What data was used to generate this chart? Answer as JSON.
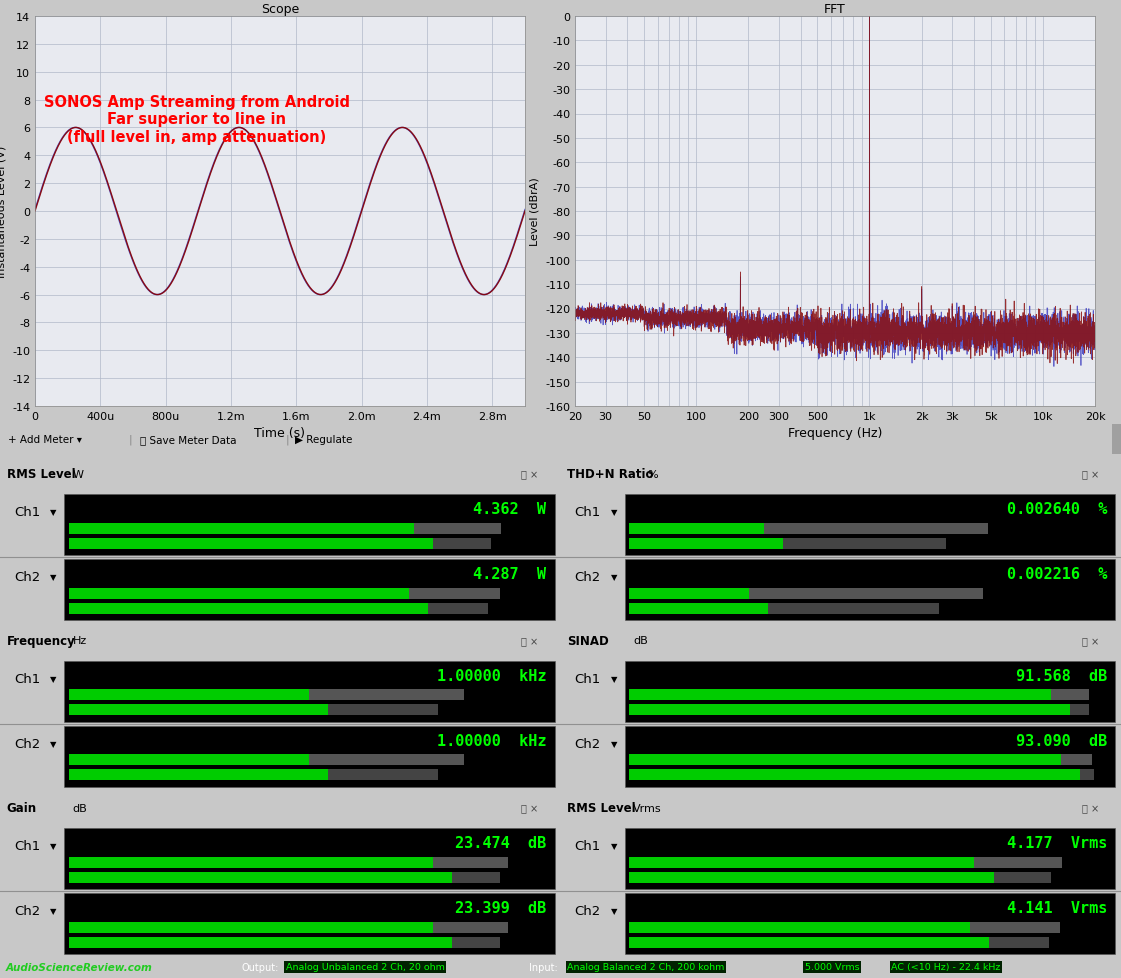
{
  "scope_title": "Scope",
  "fft_title": "FFT",
  "scope_annotation": "SONOS Amp Streaming from Android\nFar superior to line in\n(flull level in, amp attenuation)",
  "scope_annotation_color": "#FF0000",
  "scope_xlim": [
    0,
    0.003
  ],
  "scope_ylim": [
    -14,
    14
  ],
  "scope_xlabel": "Time (s)",
  "scope_ylabel": "Instantaneous Level (V)",
  "scope_xticks": [
    0,
    0.0004,
    0.0008,
    0.0012,
    0.0016,
    0.002,
    0.0024,
    0.0028
  ],
  "scope_xticklabels": [
    "0",
    "400u",
    "800u",
    "1.2m",
    "1.6m",
    "2.0m",
    "2.4m",
    "2.8m"
  ],
  "scope_yticks": [
    -14,
    -12,
    -10,
    -8,
    -6,
    -4,
    -2,
    0,
    2,
    4,
    6,
    8,
    10,
    12,
    14
  ],
  "scope_amplitude": 6.0,
  "scope_frequency": 1000,
  "fft_ylim": [
    -160,
    0
  ],
  "fft_xlabel": "Frequency (Hz)",
  "fft_ylabel": "Level (dBrA)",
  "fft_yticks": [
    0,
    -10,
    -20,
    -30,
    -40,
    -50,
    -60,
    -70,
    -80,
    -90,
    -100,
    -110,
    -120,
    -130,
    -140,
    -150,
    -160
  ],
  "fft_xticks": [
    20,
    30,
    50,
    100,
    200,
    300,
    500,
    1000,
    2000,
    3000,
    5000,
    10000,
    20000
  ],
  "fft_xticklabels": [
    "20",
    "30",
    "50",
    "100",
    "200",
    "300",
    "500",
    "1k",
    "2k",
    "3k",
    "5k",
    "10k",
    "20k"
  ],
  "bg_color": "#c8c8c8",
  "plot_bg_color": "#e8eaf0",
  "grid_color": "#b0b8c8",
  "meters": [
    {
      "title": "RMS Level",
      "unit_label": "W",
      "ch1_value": "4.362",
      "ch1_unit": "W",
      "ch2_value": "4.287",
      "ch2_unit": "W",
      "ch1_bar_pct": 0.72,
      "ch2_bar_pct": 0.71
    },
    {
      "title": "THD+N Ratio",
      "unit_label": "%",
      "ch1_value": "0.002640",
      "ch1_unit": "%",
      "ch2_value": "0.002216",
      "ch2_unit": "%",
      "ch1_bar_pct": 0.28,
      "ch2_bar_pct": 0.25
    },
    {
      "title": "Frequency",
      "unit_label": "Hz",
      "ch1_value": "1.00000",
      "ch1_unit": "kHz",
      "ch2_value": "1.00000",
      "ch2_unit": "kHz",
      "ch1_bar_pct": 0.5,
      "ch2_bar_pct": 0.5
    },
    {
      "title": "SINAD",
      "unit_label": "dB",
      "ch1_value": "91.568",
      "ch1_unit": "dB",
      "ch2_value": "93.090",
      "ch2_unit": "dB",
      "ch1_bar_pct": 0.88,
      "ch2_bar_pct": 0.9
    },
    {
      "title": "Gain",
      "unit_label": "dB",
      "ch1_value": "23.474",
      "ch1_unit": "dB",
      "ch2_value": "23.399",
      "ch2_unit": "dB",
      "ch1_bar_pct": 0.76,
      "ch2_bar_pct": 0.76
    },
    {
      "title": "RMS Level",
      "unit_label": "Vrms",
      "ch1_value": "4.177",
      "ch1_unit": "Vrms",
      "ch2_value": "4.141",
      "ch2_unit": "Vrms",
      "ch1_bar_pct": 0.72,
      "ch2_bar_pct": 0.71
    }
  ],
  "footer_asr": "AudioScienceReview.com",
  "footer_output_label": "Output:",
  "footer_output_val": "Analog Unbalanced 2 Ch, 20 ohm",
  "footer_input_label": "Input:",
  "footer_input_val": "Analog Balanced 2 Ch, 200 kohm",
  "footer_level": "5.000 Vrms",
  "footer_filter": "AC (<10 Hz) - 22.4 kHz"
}
